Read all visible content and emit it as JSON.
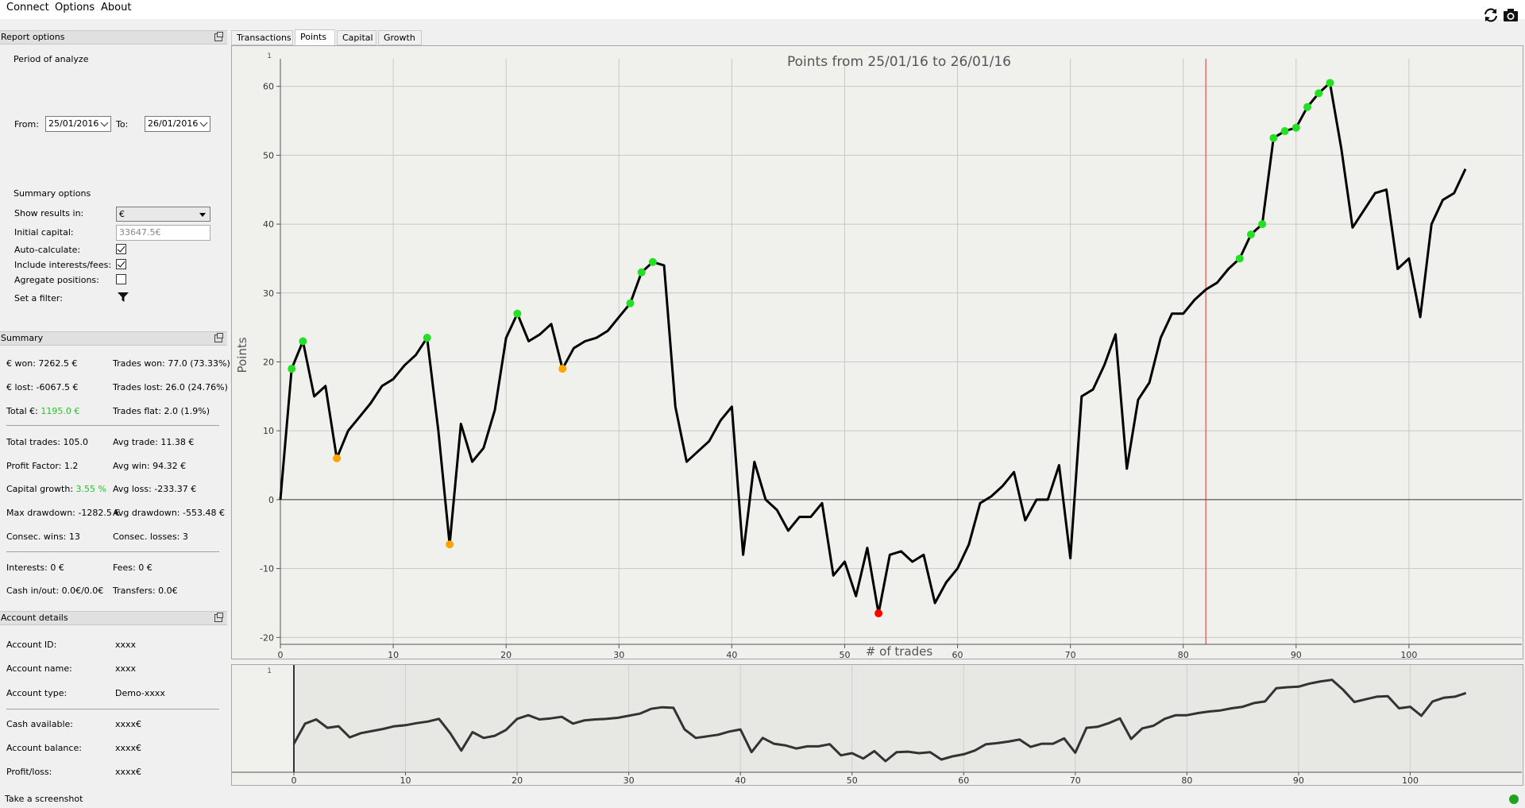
{
  "menu": [
    "Connect",
    "Options",
    "About"
  ],
  "toolbar": {
    "refresh_icon": "refresh-icon",
    "camera_icon": "camera-icon"
  },
  "report_options": {
    "title": "Report options",
    "period_label": "Period of analyze",
    "from_label": "From:",
    "from_value": "25/01/2016",
    "to_label": "To:",
    "to_value": "26/01/2016",
    "summary_options_label": "Summary options",
    "show_results_label": "Show results in:",
    "show_results_value": "€",
    "initial_capital_label": "Initial capital:",
    "initial_capital_placeholder": "33647.5€",
    "auto_calculate_label": "Auto-calculate:",
    "auto_calculate": true,
    "include_interests_label": "Include interests/fees:",
    "include_interests": true,
    "aggregate_label": "Agregate positions:",
    "aggregate": false,
    "filter_label": "Set a filter:"
  },
  "summary": {
    "title": "Summary",
    "won": "€ won: 7262.5 €",
    "trades_won": "Trades won: 77.0 (73.33%)",
    "lost": "€ lost: -6067.5 €",
    "trades_lost": "Trades lost: 26.0 (24.76%)",
    "total_label": "Total €: ",
    "total_value": "1195.0 €",
    "trades_flat": "Trades flat: 2.0 (1.9%)",
    "total_trades": "Total trades: 105.0",
    "avg_trade": "Avg trade: 11.38 €",
    "profit_factor": "Profit Factor: 1.2",
    "avg_win": "Avg win: 94.32 €",
    "capital_growth_label": "Capital growth: ",
    "capital_growth_value": "3.55 %",
    "avg_loss": "Avg loss: -233.37 €",
    "max_drawdown": "Max drawdown: -1282.5 €",
    "avg_drawdown": "Avg drawdown: -553.48 €",
    "consec_wins": "Consec. wins: 13",
    "consec_losses": "Consec. losses: 3",
    "interests": "Interests: 0 €",
    "fees": "Fees: 0 €",
    "cash_inout": "Cash in/out: 0.0€/0.0€",
    "transfers": "Transfers: 0.0€"
  },
  "account": {
    "title": "Account details",
    "rows": [
      {
        "label": "Account ID:",
        "value": "xxxx"
      },
      {
        "label": "Account name:",
        "value": "xxxx"
      },
      {
        "label": "Account type:",
        "value": "Demo-xxxx"
      },
      {
        "label": "Cash available:",
        "value": "xxxx€"
      },
      {
        "label": "Account balance:",
        "value": "xxxx€"
      },
      {
        "label": "Profit/loss:",
        "value": "xxxx€"
      }
    ]
  },
  "tabs": [
    "Transactions",
    "Points",
    "Capital",
    "Growth"
  ],
  "active_tab": "Points",
  "status": {
    "text": "Take a screenshot"
  },
  "chart_data": {
    "type": "line",
    "title": "Points from 25/01/16 to 26/01/16",
    "xlabel": "# of trades",
    "ylabel": "Points",
    "xlim": [
      0,
      110
    ],
    "ylim": [
      -21,
      64
    ],
    "xticks": [
      0,
      10,
      20,
      30,
      40,
      50,
      60,
      70,
      80,
      90,
      100
    ],
    "yticks": [
      -20,
      -10,
      0,
      10,
      20,
      30,
      40,
      50,
      60
    ],
    "grid": true,
    "marker_line_x": 82,
    "colors": {
      "line": "#000000",
      "high": "#22e022",
      "low": "#ffa500",
      "min": "#ff0000",
      "marker": "#e03030"
    },
    "x": [
      0,
      1,
      2,
      3,
      4,
      5,
      6,
      7,
      8,
      9,
      10,
      11,
      12,
      13,
      14,
      15,
      16,
      17,
      18,
      19,
      20,
      21,
      22,
      23,
      24,
      25,
      26,
      27,
      28,
      29,
      30,
      31,
      32,
      33,
      34,
      35,
      36,
      37,
      38,
      39,
      40,
      41,
      42,
      43,
      44,
      45,
      46,
      47,
      48,
      49,
      50,
      51,
      52,
      53,
      54,
      55,
      56,
      57,
      58,
      59,
      60,
      61,
      62,
      63,
      64,
      65,
      66,
      67,
      68,
      69,
      70,
      71,
      72,
      73,
      74,
      75,
      76,
      77,
      78,
      79,
      80,
      81,
      82,
      83,
      84,
      85,
      86,
      87,
      88,
      89,
      90,
      91,
      92,
      93,
      94,
      95,
      96,
      97,
      98,
      99,
      100,
      101,
      102,
      103,
      104,
      105
    ],
    "y": [
      0,
      19,
      23,
      15,
      16.5,
      6,
      10,
      12,
      14,
      16.5,
      17.5,
      19.5,
      21,
      23.5,
      10,
      -6.5,
      11,
      5.5,
      7.5,
      13,
      23.5,
      27,
      23,
      24,
      25.5,
      19,
      22,
      23,
      23.5,
      24.5,
      26.5,
      28.5,
      33,
      34.5,
      34,
      13.5,
      5.5,
      7,
      8.5,
      11.5,
      13.5,
      -8,
      5.5,
      0,
      -1.5,
      -4.5,
      -2.5,
      -2.5,
      -0.5,
      -11,
      -9,
      -14,
      -7,
      -16.5,
      -8,
      -7.5,
      -9,
      -8,
      -15,
      -12,
      -10,
      -6.5,
      -0.5,
      0.5,
      2,
      4,
      -3,
      0,
      0,
      5,
      -8.5,
      15,
      16,
      19.5,
      24,
      4.5,
      14.5,
      17,
      23.5,
      27,
      27,
      29,
      30.5,
      31.5,
      33.5,
      35,
      38.5,
      40,
      52.5,
      53.5,
      54,
      57,
      59,
      60.5,
      51,
      39.5,
      42,
      44.5,
      45,
      33.5,
      35,
      26.5,
      40,
      43.5,
      44.5,
      48
    ],
    "high_points": [
      [
        1,
        19
      ],
      [
        2,
        23
      ],
      [
        13,
        23.5
      ],
      [
        21,
        27
      ],
      [
        31,
        28.5
      ],
      [
        32,
        33
      ],
      [
        33,
        34.5
      ],
      [
        85,
        35
      ],
      [
        86,
        38.5
      ],
      [
        87,
        40
      ],
      [
        88,
        52.5
      ],
      [
        89,
        53.5
      ],
      [
        90,
        54
      ],
      [
        91,
        57
      ],
      [
        92,
        59
      ],
      [
        93,
        60.5
      ]
    ],
    "low_points": [
      [
        5,
        6
      ],
      [
        15,
        -6.5
      ],
      [
        25,
        19
      ]
    ],
    "min_point": [
      53,
      -16.5
    ],
    "overview": {
      "ytick": "1"
    }
  }
}
